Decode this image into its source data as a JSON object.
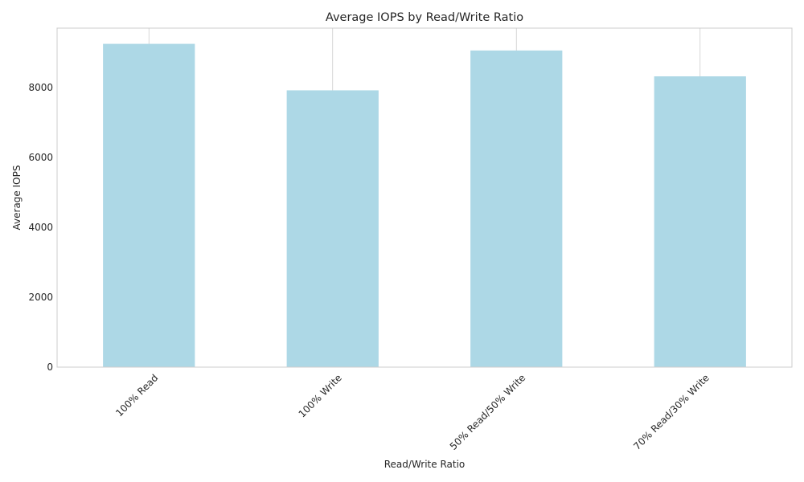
{
  "chart_data": {
    "type": "bar",
    "title": "Average IOPS by Read/Write Ratio",
    "xlabel": "Read/Write Ratio",
    "ylabel": "Average IOPS",
    "categories": [
      "100% Read",
      "100% Write",
      "50% Read/50% Write",
      "70% Read/30% Write"
    ],
    "values": [
      9250,
      7920,
      9060,
      8320
    ],
    "ylim": [
      0,
      9700
    ],
    "yticks": [
      0,
      2000,
      4000,
      6000,
      8000
    ],
    "bar_color": "#add8e6",
    "grid": true,
    "legend": "none"
  }
}
